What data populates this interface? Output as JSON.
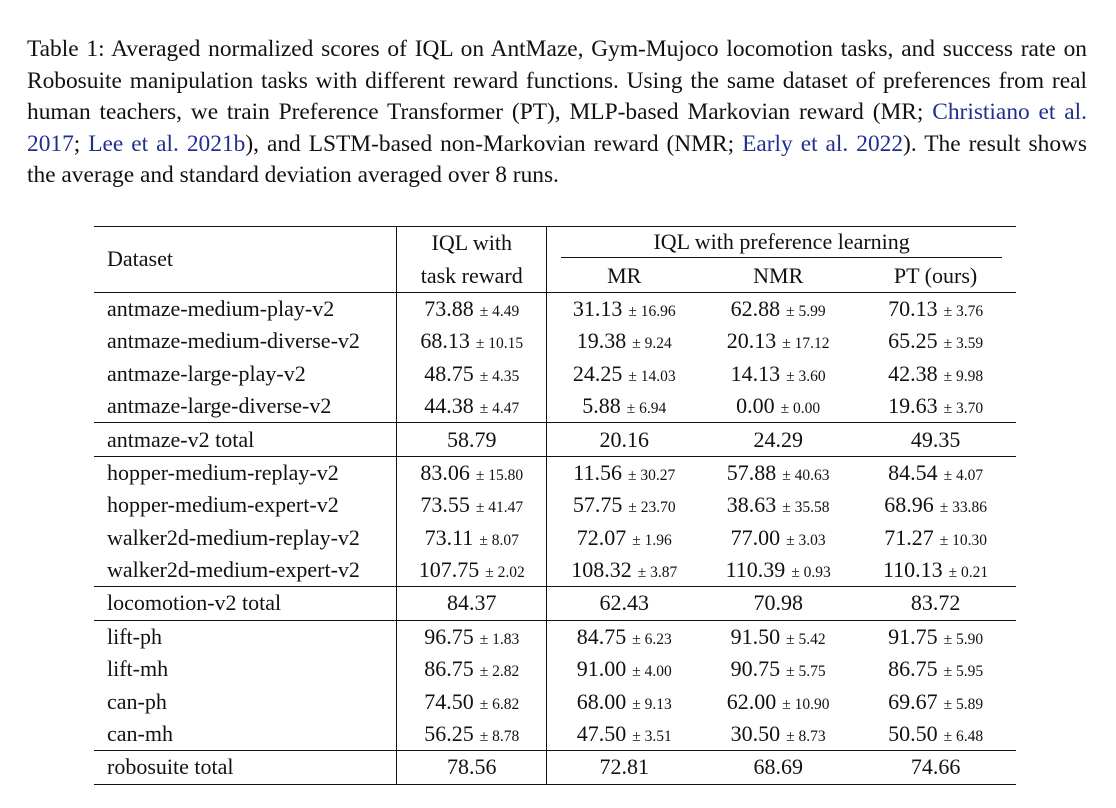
{
  "caption": {
    "label": "Table 1:",
    "text_a": "Averaged normalized scores of IQL on AntMaze, Gym-Mujoco locomotion tasks, and success rate on Robosuite manipulation tasks with different reward functions. Using the same dataset of preferences from real human teachers, we train Preference Transformer (PT), MLP-based Markovian reward (MR;",
    "cite1": "Christiano et al. 2017",
    "sep1": ";",
    "cite2": "Lee et al. 2021b",
    "text_b": "), and LSTM-based non-Markovian reward (NMR;",
    "cite3": "Early et al. 2022",
    "text_c": "). The result shows the average and standard deviation averaged over 8 runs."
  },
  "table": {
    "headers": {
      "dataset": "Dataset",
      "iql_line1": "IQL with",
      "iql_line2": "task reward",
      "pref_group": "IQL with preference learning",
      "mr": "MR",
      "nmr": "NMR",
      "pt": "PT (ours)"
    },
    "groups": [
      {
        "rows": [
          {
            "name": "antmaze-medium-play-v2",
            "iql": [
              "73.88",
              "± 4.49"
            ],
            "mr": [
              "31.13",
              "± 16.96"
            ],
            "nmr": [
              "62.88",
              "± 5.99"
            ],
            "pt": [
              "70.13",
              "± 3.76"
            ]
          },
          {
            "name": "antmaze-medium-diverse-v2",
            "iql": [
              "68.13",
              "± 10.15"
            ],
            "mr": [
              "19.38",
              "± 9.24"
            ],
            "nmr": [
              "20.13",
              "± 17.12"
            ],
            "pt": [
              "65.25",
              "± 3.59"
            ]
          },
          {
            "name": "antmaze-large-play-v2",
            "iql": [
              "48.75",
              "± 4.35"
            ],
            "mr": [
              "24.25",
              "± 14.03"
            ],
            "nmr": [
              "14.13",
              "± 3.60"
            ],
            "pt": [
              "42.38",
              "± 9.98"
            ]
          },
          {
            "name": "antmaze-large-diverse-v2",
            "iql": [
              "44.38",
              "± 4.47"
            ],
            "mr": [
              "5.88",
              "± 6.94"
            ],
            "nmr": [
              "0.00",
              "± 0.00"
            ],
            "pt": [
              "19.63",
              "± 3.70"
            ]
          }
        ],
        "total": {
          "name": "antmaze-v2 total",
          "iql": "58.79",
          "mr": "20.16",
          "nmr": "24.29",
          "pt": "49.35"
        }
      },
      {
        "rows": [
          {
            "name": "hopper-medium-replay-v2",
            "iql": [
              "83.06",
              "± 15.80"
            ],
            "mr": [
              "11.56",
              "± 30.27"
            ],
            "nmr": [
              "57.88",
              "± 40.63"
            ],
            "pt": [
              "84.54",
              "± 4.07"
            ]
          },
          {
            "name": "hopper-medium-expert-v2",
            "iql": [
              "73.55",
              "± 41.47"
            ],
            "mr": [
              "57.75",
              "± 23.70"
            ],
            "nmr": [
              "38.63",
              "± 35.58"
            ],
            "pt": [
              "68.96",
              "± 33.86"
            ]
          },
          {
            "name": "walker2d-medium-replay-v2",
            "iql": [
              "73.11",
              "± 8.07"
            ],
            "mr": [
              "72.07",
              "± 1.96"
            ],
            "nmr": [
              "77.00",
              "± 3.03"
            ],
            "pt": [
              "71.27",
              "± 10.30"
            ]
          },
          {
            "name": "walker2d-medium-expert-v2",
            "iql": [
              "107.75",
              "± 2.02"
            ],
            "mr": [
              "108.32",
              "± 3.87"
            ],
            "nmr": [
              "110.39",
              "± 0.93"
            ],
            "pt": [
              "110.13",
              "± 0.21"
            ]
          }
        ],
        "total": {
          "name": "locomotion-v2 total",
          "iql": "84.37",
          "mr": "62.43",
          "nmr": "70.98",
          "pt": "83.72"
        }
      },
      {
        "rows": [
          {
            "name": "lift-ph",
            "iql": [
              "96.75",
              "± 1.83"
            ],
            "mr": [
              "84.75",
              "± 6.23"
            ],
            "nmr": [
              "91.50",
              "± 5.42"
            ],
            "pt": [
              "91.75",
              "± 5.90"
            ]
          },
          {
            "name": "lift-mh",
            "iql": [
              "86.75",
              "± 2.82"
            ],
            "mr": [
              "91.00",
              "± 4.00"
            ],
            "nmr": [
              "90.75",
              "± 5.75"
            ],
            "pt": [
              "86.75",
              "± 5.95"
            ]
          },
          {
            "name": "can-ph",
            "iql": [
              "74.50",
              "± 6.82"
            ],
            "mr": [
              "68.00",
              "± 9.13"
            ],
            "nmr": [
              "62.00",
              "± 10.90"
            ],
            "pt": [
              "69.67",
              "± 5.89"
            ]
          },
          {
            "name": "can-mh",
            "iql": [
              "56.25",
              "± 8.78"
            ],
            "mr": [
              "47.50",
              "± 3.51"
            ],
            "nmr": [
              "30.50",
              "± 8.73"
            ],
            "pt": [
              "50.50",
              "± 6.48"
            ]
          }
        ],
        "total": {
          "name": "robosuite total",
          "iql": "78.56",
          "mr": "72.81",
          "nmr": "68.69",
          "pt": "74.66"
        }
      }
    ]
  }
}
